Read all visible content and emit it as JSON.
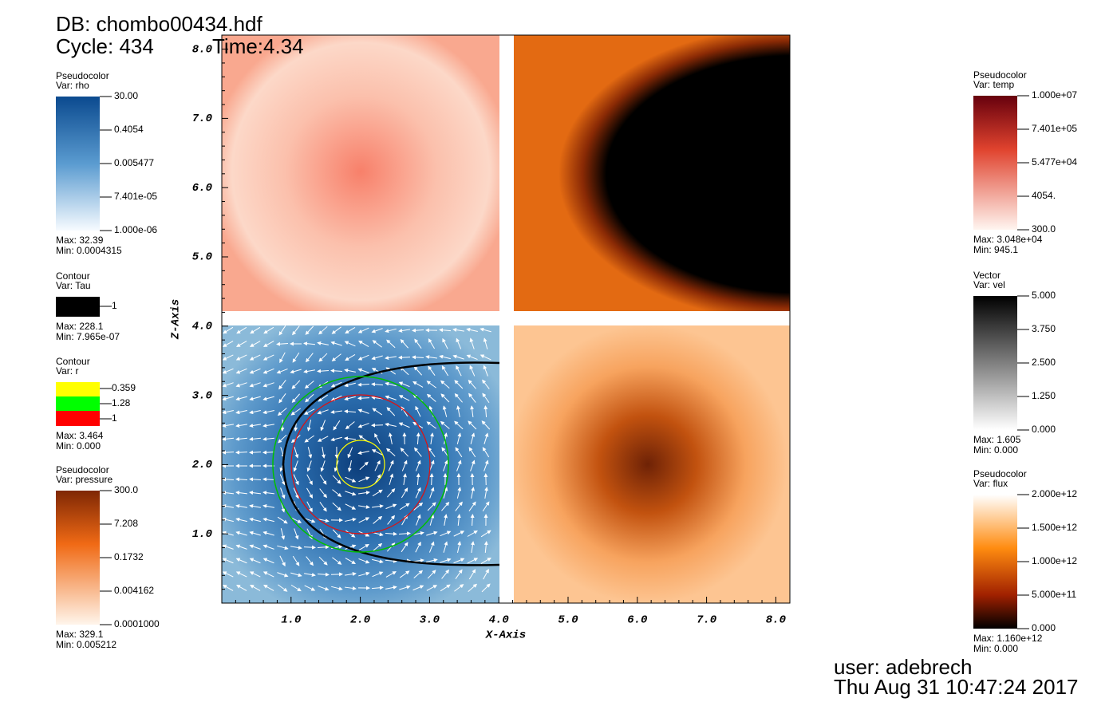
{
  "header": {
    "db": "DB: chombo00434.hdf",
    "cycle": "Cycle: 434",
    "time": "Time:4.34"
  },
  "legends_left": [
    {
      "title": "Pseudocolor",
      "var": "Var: rho",
      "labels": [
        "30.00",
        "0.4054",
        "0.005477",
        "7.401e-05",
        "1.000e-06"
      ],
      "max": "Max:  32.39",
      "min": "Min:  0.0004315"
    },
    {
      "title": "Contour",
      "var": "Var: Tau",
      "labels": [
        "1"
      ],
      "max": "Max:  228.1",
      "min": "Min:  7.965e-07"
    },
    {
      "title": "Contour",
      "var": "Var: r",
      "labels": [
        "0.359",
        "1.28",
        "1"
      ],
      "max": "Max:  3.464",
      "min": "Min:  0.000"
    },
    {
      "title": "Pseudocolor",
      "var": "Var: pressure",
      "labels": [
        "300.0",
        "7.208",
        "0.1732",
        "0.004162",
        "0.0001000"
      ],
      "max": "Max:  329.1",
      "min": "Min:  0.005212"
    }
  ],
  "legends_right": [
    {
      "title": "Pseudocolor",
      "var": "Var: temp",
      "labels": [
        "1.000e+07",
        "7.401e+05",
        "5.477e+04",
        "4054.",
        "300.0"
      ],
      "max": "Max:  3.048e+04",
      "min": "Min:  945.1"
    },
    {
      "title": "Vector",
      "var": "Var: vel",
      "labels": [
        "5.000",
        "3.750",
        "2.500",
        "1.250",
        "0.000"
      ],
      "max": "Max:  1.605",
      "min": "Min:  0.000"
    },
    {
      "title": "Pseudocolor",
      "var": "Var: flux",
      "labels": [
        "2.000e+12",
        "1.500e+12",
        "1.000e+12",
        "5.000e+11",
        "0.000"
      ],
      "max": "Max:  1.160e+12",
      "min": "Min:  0.000"
    }
  ],
  "axes": {
    "x_title": "X-Axis",
    "z_title": "Z-Axis",
    "x_ticks": [
      "1.0",
      "2.0",
      "3.0",
      "4.0",
      "5.0",
      "6.0",
      "7.0",
      "8.0"
    ],
    "z_ticks": [
      "1.0",
      "2.0",
      "3.0",
      "4.0",
      "5.0",
      "6.0",
      "7.0",
      "8.0"
    ]
  },
  "footer": {
    "user": "user: adebrech",
    "date": "Thu Aug 31 10:47:24 2017"
  }
}
